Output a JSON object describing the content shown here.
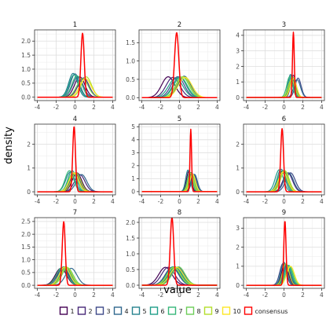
{
  "chart_data": {
    "type": "line",
    "layout": "facet-grid 3x3",
    "xlabel": "value",
    "ylabel": "density",
    "xlim": [
      -4.3,
      4.3
    ],
    "x_ticks": [
      -4,
      -2,
      0,
      2,
      4
    ],
    "grid": true,
    "legend": {
      "position": "bottom",
      "items": [
        "1",
        "2",
        "3",
        "4",
        "5",
        "6",
        "7",
        "8",
        "9",
        "10",
        "consensus"
      ]
    },
    "series_colors": {
      "1": "#440154",
      "2": "#482878",
      "3": "#3E4A89",
      "4": "#31688E",
      "5": "#26828E",
      "6": "#1F9E89",
      "7": "#35B779",
      "8": "#6DCD59",
      "9": "#B4DE2C",
      "10": "#FDE725",
      "consensus": "#FF0000"
    },
    "facets": [
      {
        "title": "1",
        "ylim": [
          -0.12,
          2.4
        ],
        "yticks": [
          "0.0",
          "0.5",
          "1.0",
          "1.5",
          "2.0"
        ],
        "ytick_values": [
          0,
          0.5,
          1.0,
          1.5,
          2.0
        ],
        "series": [
          {
            "name": "1",
            "mean": 0.5,
            "sd": 0.55
          },
          {
            "name": "2",
            "mean": 0.9,
            "sd": 0.58
          },
          {
            "name": "3",
            "mean": 0.3,
            "sd": 0.55
          },
          {
            "name": "4",
            "mean": 0.0,
            "sd": 0.48
          },
          {
            "name": "5",
            "mean": -0.2,
            "sd": 0.47
          },
          {
            "name": "6",
            "mean": -0.1,
            "sd": 0.5
          },
          {
            "name": "7",
            "mean": 0.2,
            "sd": 0.52
          },
          {
            "name": "8",
            "mean": 0.8,
            "sd": 0.6
          },
          {
            "name": "9",
            "mean": 1.2,
            "sd": 0.55
          },
          {
            "name": "10",
            "mean": 1.1,
            "sd": 0.6
          },
          {
            "name": "consensus",
            "mean": 0.8,
            "sd": 0.175
          }
        ]
      },
      {
        "title": "2",
        "ylim": [
          -0.08,
          1.85
        ],
        "yticks": [
          "0.0",
          "0.5",
          "1.0",
          "1.5"
        ],
        "ytick_values": [
          0,
          0.5,
          1.0,
          1.5
        ],
        "series": [
          {
            "name": "1",
            "mean": -1.2,
            "sd": 0.7
          },
          {
            "name": "2",
            "mean": -0.7,
            "sd": 0.72
          },
          {
            "name": "3",
            "mean": -0.2,
            "sd": 0.7
          },
          {
            "name": "4",
            "mean": 0.5,
            "sd": 0.68
          },
          {
            "name": "5",
            "mean": 0.0,
            "sd": 0.7
          },
          {
            "name": "6",
            "mean": -0.4,
            "sd": 0.75
          },
          {
            "name": "7",
            "mean": 0.1,
            "sd": 0.72
          },
          {
            "name": "8",
            "mean": 0.3,
            "sd": 0.7
          },
          {
            "name": "9",
            "mean": 0.4,
            "sd": 0.7
          },
          {
            "name": "10",
            "mean": 0.6,
            "sd": 0.72
          },
          {
            "name": "consensus",
            "mean": -0.3,
            "sd": 0.225
          }
        ]
      },
      {
        "title": "3",
        "ylim": [
          -0.2,
          4.35
        ],
        "yticks": [
          "0",
          "1",
          "2",
          "3",
          "4"
        ],
        "ytick_values": [
          0,
          1,
          2,
          3,
          4
        ],
        "series": [
          {
            "name": "1",
            "mean": 0.9,
            "sd": 0.3
          },
          {
            "name": "2",
            "mean": 1.0,
            "sd": 0.28
          },
          {
            "name": "3",
            "mean": 1.5,
            "sd": 0.32
          },
          {
            "name": "4",
            "mean": 1.4,
            "sd": 0.35
          },
          {
            "name": "5",
            "mean": 0.7,
            "sd": 0.27
          },
          {
            "name": "6",
            "mean": 0.8,
            "sd": 0.28
          },
          {
            "name": "7",
            "mean": 0.6,
            "sd": 0.3
          },
          {
            "name": "8",
            "mean": 0.9,
            "sd": 0.3
          },
          {
            "name": "9",
            "mean": 0.8,
            "sd": 0.35
          },
          {
            "name": "10",
            "mean": 1.0,
            "sd": 0.33
          },
          {
            "name": "consensus",
            "mean": 1.0,
            "sd": 0.095
          }
        ]
      },
      {
        "title": "4",
        "ylim": [
          -0.13,
          2.85
        ],
        "yticks": [
          "0",
          "1",
          "2"
        ],
        "ytick_values": [
          0,
          1,
          2
        ],
        "series": [
          {
            "name": "1",
            "mean": 0.2,
            "sd": 0.5
          },
          {
            "name": "2",
            "mean": 0.5,
            "sd": 0.55
          },
          {
            "name": "3",
            "mean": 0.0,
            "sd": 0.5
          },
          {
            "name": "4",
            "mean": 0.7,
            "sd": 0.55
          },
          {
            "name": "5",
            "mean": -0.5,
            "sd": 0.48
          },
          {
            "name": "6",
            "mean": -0.3,
            "sd": 0.45
          },
          {
            "name": "7",
            "mean": -0.6,
            "sd": 0.45
          },
          {
            "name": "8",
            "mean": -0.2,
            "sd": 0.5
          },
          {
            "name": "9",
            "mean": 0.1,
            "sd": 0.5
          },
          {
            "name": "10",
            "mean": -0.1,
            "sd": 0.5
          },
          {
            "name": "consensus",
            "mean": -0.1,
            "sd": 0.145
          }
        ]
      },
      {
        "title": "5",
        "ylim": [
          -0.25,
          5.2
        ],
        "yticks": [
          "0",
          "1",
          "2",
          "3",
          "4",
          "5"
        ],
        "ytick_values": [
          0,
          1,
          2,
          3,
          4,
          5
        ],
        "series": [
          {
            "name": "1",
            "mean": 1.0,
            "sd": 0.25
          },
          {
            "name": "2",
            "mean": 1.3,
            "sd": 0.28
          },
          {
            "name": "3",
            "mean": 1.5,
            "sd": 0.3
          },
          {
            "name": "4",
            "mean": 1.6,
            "sd": 0.3
          },
          {
            "name": "5",
            "mean": 0.9,
            "sd": 0.24
          },
          {
            "name": "6",
            "mean": 1.2,
            "sd": 0.27
          },
          {
            "name": "7",
            "mean": 1.1,
            "sd": 0.27
          },
          {
            "name": "8",
            "mean": 1.3,
            "sd": 0.3
          },
          {
            "name": "9",
            "mean": 1.2,
            "sd": 0.28
          },
          {
            "name": "10",
            "mean": 1.4,
            "sd": 0.3
          },
          {
            "name": "consensus",
            "mean": 1.2,
            "sd": 0.083
          }
        ]
      },
      {
        "title": "6",
        "ylim": [
          -0.13,
          2.85
        ],
        "yticks": [
          "0",
          "1",
          "2"
        ],
        "ytick_values": [
          0,
          1,
          2
        ],
        "series": [
          {
            "name": "1",
            "mean": -0.1,
            "sd": 0.45
          },
          {
            "name": "2",
            "mean": 0.4,
            "sd": 0.5
          },
          {
            "name": "3",
            "mean": 0.7,
            "sd": 0.5
          },
          {
            "name": "4",
            "mean": 0.5,
            "sd": 0.5
          },
          {
            "name": "5",
            "mean": -0.3,
            "sd": 0.42
          },
          {
            "name": "6",
            "mean": -0.5,
            "sd": 0.43
          },
          {
            "name": "7",
            "mean": -0.2,
            "sd": 0.45
          },
          {
            "name": "8",
            "mean": 0.0,
            "sd": 0.45
          },
          {
            "name": "9",
            "mean": 0.1,
            "sd": 0.45
          },
          {
            "name": "10",
            "mean": -0.1,
            "sd": 0.48
          },
          {
            "name": "consensus",
            "mean": -0.2,
            "sd": 0.15
          }
        ]
      },
      {
        "title": "7",
        "ylim": [
          -0.12,
          2.65
        ],
        "yticks": [
          "0.0",
          "0.5",
          "1.0",
          "1.5",
          "2.0",
          "2.5"
        ],
        "ytick_values": [
          0,
          0.5,
          1.0,
          1.5,
          2.0,
          2.5
        ],
        "series": [
          {
            "name": "1",
            "mean": -1.5,
            "sd": 0.6
          },
          {
            "name": "2",
            "mean": -1.3,
            "sd": 0.6
          },
          {
            "name": "3",
            "mean": -1.0,
            "sd": 0.55
          },
          {
            "name": "4",
            "mean": -0.4,
            "sd": 0.6
          },
          {
            "name": "5",
            "mean": -1.2,
            "sd": 0.55
          },
          {
            "name": "6",
            "mean": -1.0,
            "sd": 0.55
          },
          {
            "name": "7",
            "mean": -1.4,
            "sd": 0.58
          },
          {
            "name": "8",
            "mean": -0.8,
            "sd": 0.58
          },
          {
            "name": "9",
            "mean": -0.9,
            "sd": 0.56
          },
          {
            "name": "10",
            "mean": -1.1,
            "sd": 0.56
          },
          {
            "name": "consensus",
            "mean": -1.2,
            "sd": 0.16
          }
        ]
      },
      {
        "title": "8",
        "ylim": [
          -0.1,
          2.15
        ],
        "yticks": [
          "0.0",
          "0.5",
          "1.0",
          "1.5",
          "2.0"
        ],
        "ytick_values": [
          0,
          0.5,
          1.0,
          1.5,
          2.0
        ],
        "series": [
          {
            "name": "1",
            "mean": -1.5,
            "sd": 0.7
          },
          {
            "name": "2",
            "mean": -1.2,
            "sd": 0.7
          },
          {
            "name": "3",
            "mean": -0.8,
            "sd": 0.7
          },
          {
            "name": "4",
            "mean": -0.2,
            "sd": 0.7
          },
          {
            "name": "5",
            "mean": -0.5,
            "sd": 0.68
          },
          {
            "name": "6",
            "mean": -0.7,
            "sd": 0.68
          },
          {
            "name": "7",
            "mean": -0.4,
            "sd": 0.7
          },
          {
            "name": "8",
            "mean": -0.1,
            "sd": 0.68
          },
          {
            "name": "9",
            "mean": -0.6,
            "sd": 0.7
          },
          {
            "name": "10",
            "mean": -0.3,
            "sd": 0.7
          },
          {
            "name": "consensus",
            "mean": -0.8,
            "sd": 0.185
          }
        ]
      },
      {
        "title": "9",
        "ylim": [
          -0.16,
          3.55
        ],
        "yticks": [
          "0",
          "1",
          "2",
          "3"
        ],
        "ytick_values": [
          0,
          1,
          2,
          3
        ],
        "series": [
          {
            "name": "1",
            "mean": 0.1,
            "sd": 0.35
          },
          {
            "name": "2",
            "mean": 0.2,
            "sd": 0.38
          },
          {
            "name": "3",
            "mean": -0.1,
            "sd": 0.35
          },
          {
            "name": "4",
            "mean": 0.3,
            "sd": 0.38
          },
          {
            "name": "5",
            "mean": 0.0,
            "sd": 0.33
          },
          {
            "name": "6",
            "mean": 0.4,
            "sd": 0.38
          },
          {
            "name": "7",
            "mean": 0.5,
            "sd": 0.38
          },
          {
            "name": "8",
            "mean": 0.6,
            "sd": 0.4
          },
          {
            "name": "9",
            "mean": 0.2,
            "sd": 0.35
          },
          {
            "name": "10",
            "mean": 0.7,
            "sd": 0.4
          },
          {
            "name": "consensus",
            "mean": 0.1,
            "sd": 0.118
          }
        ]
      }
    ]
  }
}
